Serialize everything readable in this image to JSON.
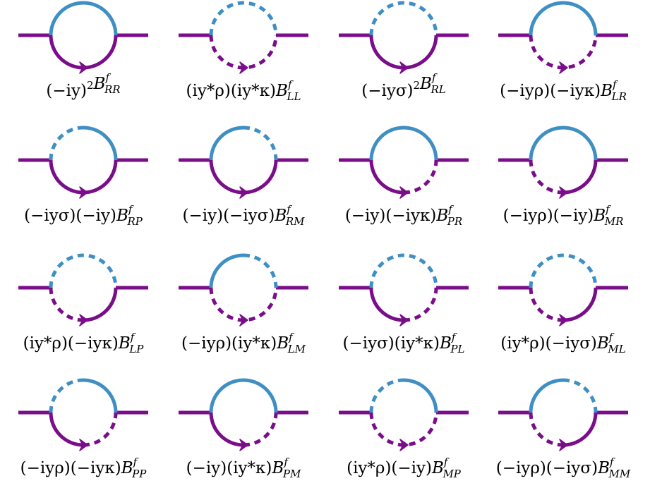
{
  "colors": {
    "top_arc": "#3f8fc4",
    "bottom_arc": "#7a0e8a",
    "external_line": "#7a0e8a"
  },
  "diagrams": [
    {
      "top": "solid",
      "bottom": "solid",
      "label": {
        "pre": "(−iy)",
        "sup_pre": "2",
        "base": "B",
        "sup": "f",
        "sub": "RR"
      }
    },
    {
      "top": "dashed",
      "bottom": "dashed",
      "label": {
        "pre": "(iy*ρ)(iy*κ)",
        "sup_pre": "",
        "base": "B",
        "sup": "f",
        "sub": "LL"
      }
    },
    {
      "top": "dashed",
      "bottom": "solid",
      "label": {
        "pre": "(−iyσ)",
        "sup_pre": "2",
        "base": "B",
        "sup": "f",
        "sub": "RL"
      }
    },
    {
      "top": "solid",
      "bottom": "dashed",
      "label": {
        "pre": "(−iyρ)(−iyκ)",
        "sup_pre": "",
        "base": "B",
        "sup": "f",
        "sub": "LR"
      }
    },
    {
      "top": "dashed_left",
      "bottom": "solid",
      "label": {
        "pre": "(−iyσ)(−iy)",
        "sup_pre": "",
        "base": "B",
        "sup": "f",
        "sub": "RP"
      }
    },
    {
      "top": "dashed_right",
      "bottom": "solid",
      "label": {
        "pre": "(−iy)(−iyσ)",
        "sup_pre": "",
        "base": "B",
        "sup": "f",
        "sub": "RM"
      }
    },
    {
      "top": "solid",
      "bottom": "dashed_right",
      "label": {
        "pre": "(−iy)(−iyκ)",
        "sup_pre": "",
        "base": "B",
        "sup": "f",
        "sub": "PR"
      }
    },
    {
      "top": "solid",
      "bottom": "dashed_left",
      "label": {
        "pre": "(−iyρ)(−iy)",
        "sup_pre": "",
        "base": "B",
        "sup": "f",
        "sub": "MR"
      }
    },
    {
      "top": "dashed",
      "bottom": "dashed_left",
      "label": {
        "pre": "(iy*ρ)(−iyκ)",
        "sup_pre": "",
        "base": "B",
        "sup": "f",
        "sub": "LP"
      }
    },
    {
      "top": "dashed_right",
      "bottom": "dashed",
      "label": {
        "pre": "(−iyρ)(iy*κ)",
        "sup_pre": "",
        "base": "B",
        "sup": "f",
        "sub": "LM"
      }
    },
    {
      "top": "dashed",
      "bottom": "dashed_right",
      "label": {
        "pre": "(−iyσ)(iy*κ)",
        "sup_pre": "",
        "base": "B",
        "sup": "f",
        "sub": "PL"
      }
    },
    {
      "top": "dashed",
      "bottom": "dashed_left",
      "label": {
        "pre": "(iy*ρ)(−iyσ)",
        "sup_pre": "",
        "base": "B",
        "sup": "f",
        "sub": "ML"
      }
    },
    {
      "top": "dashed_left",
      "bottom": "dashed_right",
      "label": {
        "pre": "(−iyρ)(−iyκ)",
        "sup_pre": "",
        "base": "B",
        "sup": "f",
        "sub": "PP"
      }
    },
    {
      "top": "solid",
      "bottom": "dashed_right",
      "label": {
        "pre": "(−iy)(iy*κ)",
        "sup_pre": "",
        "base": "B",
        "sup": "f",
        "sub": "PM"
      }
    },
    {
      "top": "dashed_left",
      "bottom": "dashed",
      "label": {
        "pre": "(iy*ρ)(−iy)",
        "sup_pre": "",
        "base": "B",
        "sup": "f",
        "sub": "MP"
      }
    },
    {
      "top": "dashed_right",
      "bottom": "dashed_left",
      "label": {
        "pre": "(−iyρ)(−iyσ)",
        "sup_pre": "",
        "base": "B",
        "sup": "f",
        "sub": "MM"
      }
    }
  ]
}
